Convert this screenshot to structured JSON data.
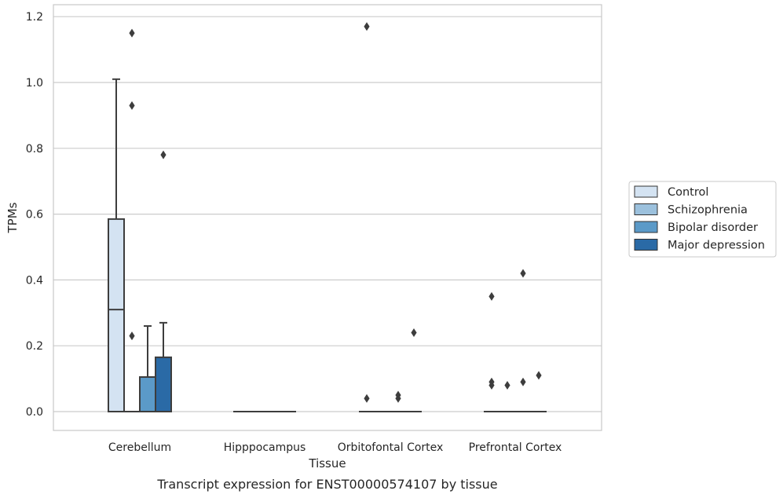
{
  "caption": "Transcript expression for ENST00000574107 by tissue",
  "chart_data": {
    "type": "box",
    "title": "",
    "xlabel": "Tissue",
    "ylabel": "TPMs",
    "ylim": [
      -0.06,
      1.23
    ],
    "yticks": [
      0.0,
      0.2,
      0.4,
      0.6,
      0.8,
      1.0,
      1.2
    ],
    "ytick_labels": [
      "0.0",
      "0.2",
      "0.4",
      "0.6",
      "0.8",
      "1.0",
      "1.2"
    ],
    "grid": "horizontal",
    "legend_position": "right",
    "categories": [
      "Cerebellum",
      "Hipppocampus",
      "Orbitofontal Cortex",
      "Prefrontal Cortex"
    ],
    "series": [
      {
        "name": "Control",
        "color": "#d4e3f2",
        "boxes": [
          {
            "q1": 0.0,
            "median": 0.31,
            "q3": 0.585,
            "whisker_low": 0.0,
            "whisker_high": 1.01,
            "outliers": []
          },
          {
            "q1": 0.0,
            "median": 0.0,
            "q3": 0.0,
            "whisker_low": 0.0,
            "whisker_high": 0.0,
            "outliers": []
          },
          {
            "q1": 0.0,
            "median": 0.0,
            "q3": 0.0,
            "whisker_low": 0.0,
            "whisker_high": 0.0,
            "outliers": [
              0.04,
              1.17
            ]
          },
          {
            "q1": 0.0,
            "median": 0.0,
            "q3": 0.0,
            "whisker_low": 0.0,
            "whisker_high": 0.0,
            "outliers": [
              0.08,
              0.09,
              0.35
            ]
          }
        ]
      },
      {
        "name": "Schizophrenia",
        "color": "#9cc1dd",
        "boxes": [
          {
            "q1": 0.0,
            "median": 0.0,
            "q3": 0.0,
            "whisker_low": 0.0,
            "whisker_high": 0.0,
            "outliers": [
              0.23,
              0.93,
              1.15
            ]
          },
          {
            "q1": 0.0,
            "median": 0.0,
            "q3": 0.0,
            "whisker_low": 0.0,
            "whisker_high": 0.0,
            "outliers": []
          },
          {
            "q1": 0.0,
            "median": 0.0,
            "q3": 0.0,
            "whisker_low": 0.0,
            "whisker_high": 0.0,
            "outliers": []
          },
          {
            "q1": 0.0,
            "median": 0.0,
            "q3": 0.0,
            "whisker_low": 0.0,
            "whisker_high": 0.0,
            "outliers": [
              0.08
            ]
          }
        ]
      },
      {
        "name": "Bipolar disorder",
        "color": "#5b9ac8",
        "boxes": [
          {
            "q1": 0.0,
            "median": 0.0,
            "q3": 0.105,
            "whisker_low": 0.0,
            "whisker_high": 0.26,
            "outliers": []
          },
          {
            "q1": 0.0,
            "median": 0.0,
            "q3": 0.0,
            "whisker_low": 0.0,
            "whisker_high": 0.0,
            "outliers": []
          },
          {
            "q1": 0.0,
            "median": 0.0,
            "q3": 0.0,
            "whisker_low": 0.0,
            "whisker_high": 0.0,
            "outliers": [
              0.04,
              0.05
            ]
          },
          {
            "q1": 0.0,
            "median": 0.0,
            "q3": 0.0,
            "whisker_low": 0.0,
            "whisker_high": 0.0,
            "outliers": [
              0.09,
              0.42
            ]
          }
        ]
      },
      {
        "name": "Major depression",
        "color": "#2a6aa6",
        "boxes": [
          {
            "q1": 0.0,
            "median": 0.0,
            "q3": 0.165,
            "whisker_low": 0.0,
            "whisker_high": 0.27,
            "outliers": [
              0.78
            ]
          },
          {
            "q1": 0.0,
            "median": 0.0,
            "q3": 0.0,
            "whisker_low": 0.0,
            "whisker_high": 0.0,
            "outliers": []
          },
          {
            "q1": 0.0,
            "median": 0.0,
            "q3": 0.0,
            "whisker_low": 0.0,
            "whisker_high": 0.0,
            "outliers": [
              0.24
            ]
          },
          {
            "q1": 0.0,
            "median": 0.0,
            "q3": 0.0,
            "whisker_low": 0.0,
            "whisker_high": 0.0,
            "outliers": [
              0.11
            ]
          }
        ]
      }
    ],
    "colors": {
      "grid": "#cccccc",
      "frame": "#c8c8c8",
      "box_edge": "#3d3d3d",
      "outlier": "#3d3d3d",
      "legend_border": "#c8c8c8"
    }
  }
}
